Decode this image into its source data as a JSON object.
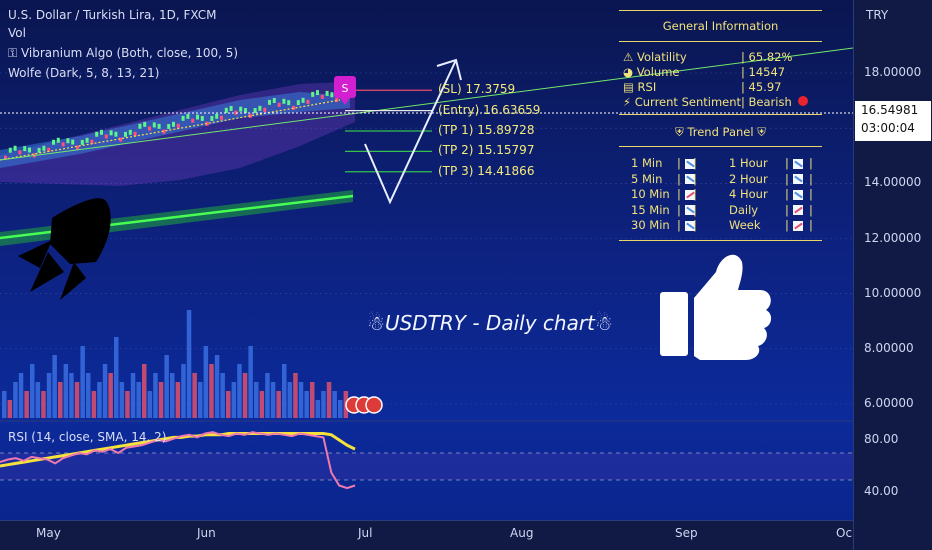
{
  "header": {
    "symbol_line": "U.S. Dollar / Turkish Lira, 1D, FXCM",
    "indicators": [
      "Vol",
      "⚿ Vibranium Algo (Both, close, 100, 5)",
      "Wolfe (Dark, 5, 8, 13, 21)"
    ]
  },
  "price_axis": {
    "currency": "TRY",
    "labels": [
      "18.00000",
      "14.00000",
      "12.00000",
      "10.00000",
      "8.00000",
      "6.00000"
    ],
    "current_price": "16.54981",
    "countdown": "03:00:04"
  },
  "time_axis": {
    "labels": [
      "May",
      "Jun",
      "Jul",
      "Aug",
      "Sep",
      "Oc"
    ]
  },
  "trade_levels": [
    {
      "label": "(SL) 17.3759",
      "value": 17.3759,
      "color": "#e64b6a"
    },
    {
      "label": "(Entry) 16.63659",
      "value": 16.63659,
      "color": "#e8e8e8"
    },
    {
      "label": "(TP 1) 15.89728",
      "value": 15.89728,
      "color": "#35c24d"
    },
    {
      "label": "(TP 2) 15.15797",
      "value": 15.15797,
      "color": "#35c24d"
    },
    {
      "label": "(TP 3) 14.41866",
      "value": 14.41866,
      "color": "#35c24d"
    }
  ],
  "signal_badge": "S",
  "info_panel": {
    "title": "General Information",
    "rows": [
      {
        "icon": "warning-icon",
        "glyph": "⚠",
        "label": "Volatility",
        "value": "| 65.82%"
      },
      {
        "icon": "globe-icon",
        "glyph": "◕",
        "label": "Volume",
        "value": "| 14547"
      },
      {
        "icon": "chart-icon",
        "glyph": "▤",
        "label": "RSI",
        "value": "| 45.97"
      },
      {
        "icon": "lightning-icon",
        "glyph": "⚡",
        "label": "Current Sentiment",
        "value": "| Bearish"
      }
    ],
    "sentiment_color": "#e8232e"
  },
  "trend_panel": {
    "title": "Trend Panel",
    "rows": [
      {
        "left": "1 Min",
        "left_trend": "down",
        "right": "1 Hour",
        "right_trend": "down"
      },
      {
        "left": "5 Min",
        "left_trend": "down",
        "right": "2 Hour",
        "right_trend": "down"
      },
      {
        "left": "10 Min",
        "left_trend": "up",
        "right": "4 Hour",
        "right_trend": "down"
      },
      {
        "left": "15 Min",
        "left_trend": "down",
        "right": "Daily",
        "right_trend": "up"
      },
      {
        "left": "30 Min",
        "left_trend": "down",
        "right": "Week",
        "right_trend": "up"
      }
    ]
  },
  "caption": "USDTRY - Daily chart",
  "rsi": {
    "header": "RSI (14, close, SMA, 14, 2)",
    "labels": [
      "80.00",
      "40.00"
    ]
  },
  "colors": {
    "rsi_line": "#f07ab0",
    "rsi_sma": "#f5e33c",
    "trend_up": "#e0506a",
    "trend_down": "#4d8fe0",
    "panel_text": "#f2e27a"
  },
  "chart_data": {
    "type": "candlestick",
    "ylim": [
      5.5,
      19.5
    ],
    "y_ticks": [
      6,
      8,
      10,
      12,
      14,
      16,
      18
    ],
    "x_ticks": [
      "May",
      "Jun",
      "Jul",
      "Aug",
      "Sep",
      "Oc"
    ],
    "close_approx": [
      15.0,
      15.2,
      15.4,
      15.6,
      15.8,
      16.0,
      16.2,
      16.4,
      16.6,
      16.8,
      17.0,
      17.2,
      17.3,
      17.1,
      16.55
    ],
    "volume_series": [
      {
        "name": "Vol",
        "values": [
          3,
          2,
          4,
          5,
          3,
          6,
          4,
          3,
          5,
          7,
          4,
          6,
          5,
          4,
          8,
          5,
          3,
          4,
          6,
          5,
          9,
          4,
          3,
          5,
          4,
          6,
          3,
          5,
          4,
          7,
          5,
          4,
          6,
          12,
          5,
          4,
          8,
          6,
          7,
          5,
          3,
          4,
          6,
          5,
          8,
          4,
          3,
          5,
          4,
          3,
          6,
          4,
          5,
          4,
          3,
          4,
          2,
          3,
          4,
          3,
          2,
          3
        ]
      }
    ],
    "rsi_series": [
      {
        "values": [
          63,
          65,
          66,
          64,
          67,
          66,
          65,
          62,
          66,
          68,
          70,
          69,
          72,
          71,
          73,
          70,
          74,
          75,
          76,
          78,
          80,
          79,
          81,
          83,
          84,
          82,
          85,
          86,
          84,
          83,
          85,
          84,
          86,
          85,
          84,
          85,
          84,
          83,
          85,
          84,
          83,
          82,
          55,
          45,
          43,
          45
        ]
      },
      {
        "values": [
          60,
          61,
          62,
          63,
          64,
          65,
          66,
          67,
          68,
          69,
          70,
          71,
          72,
          73,
          74,
          75,
          76,
          77,
          78,
          79,
          80,
          81,
          82,
          82,
          83,
          83,
          84,
          84,
          84,
          85,
          85,
          85,
          85,
          85,
          85,
          85,
          85,
          85,
          85,
          85,
          85,
          85,
          84,
          80,
          76,
          73
        ]
      }
    ],
    "rsi_ylim": [
      25,
      95
    ]
  }
}
